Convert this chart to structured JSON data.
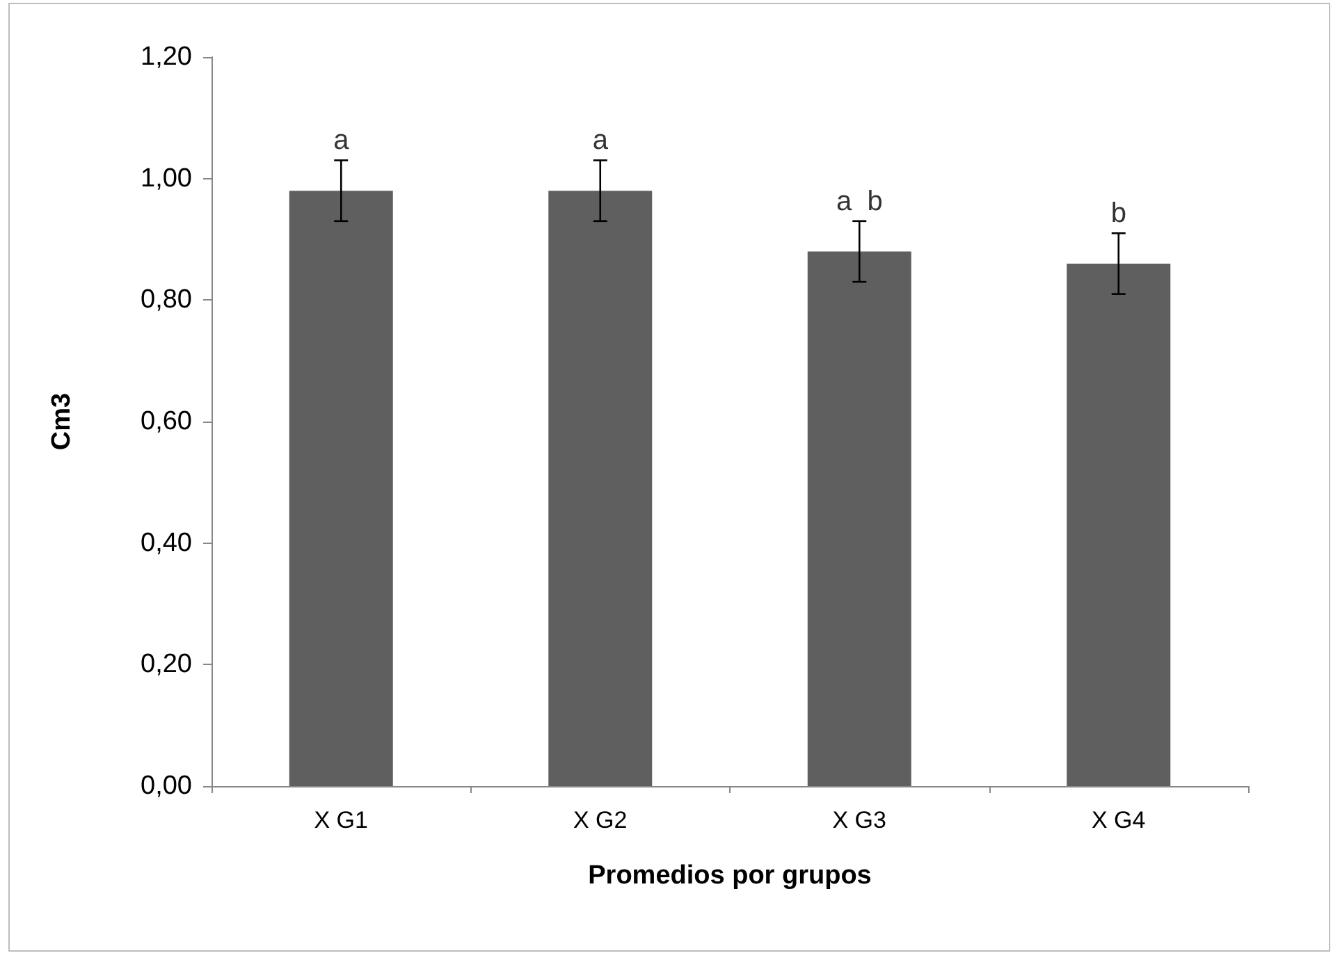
{
  "chart_data": {
    "type": "bar",
    "xlabel": "Promedios por grupos",
    "ylabel": "Cm3",
    "categories": [
      "X G1",
      "X G2",
      "X G3",
      "X G4"
    ],
    "values": [
      0.98,
      0.98,
      0.88,
      0.86
    ],
    "color": "#5f5f5f",
    "errors": [
      0.05,
      0.05,
      0.05,
      0.05
    ],
    "ylim": [
      0,
      1.2
    ],
    "yticks": [
      {
        "value": 0,
        "label": "0,00"
      },
      {
        "value": 0.2,
        "label": "0,20"
      },
      {
        "value": 0.4,
        "label": "0,40"
      },
      {
        "value": 0.6,
        "label": "0,60"
      },
      {
        "value": 0.8,
        "label": "0,80"
      },
      {
        "value": 1.0,
        "label": "1,00"
      },
      {
        "value": 1.2,
        "label": "1,20"
      }
    ],
    "grid": false,
    "annotations": [
      {
        "text": "a",
        "x": "X G1",
        "y": 1.03
      },
      {
        "text": "a",
        "x": "X G2",
        "y": 1.03
      },
      {
        "text": "a  b",
        "x": "X G3",
        "y": 0.93
      },
      {
        "text": "b",
        "x": "X G4",
        "y": 0.91
      }
    ]
  }
}
